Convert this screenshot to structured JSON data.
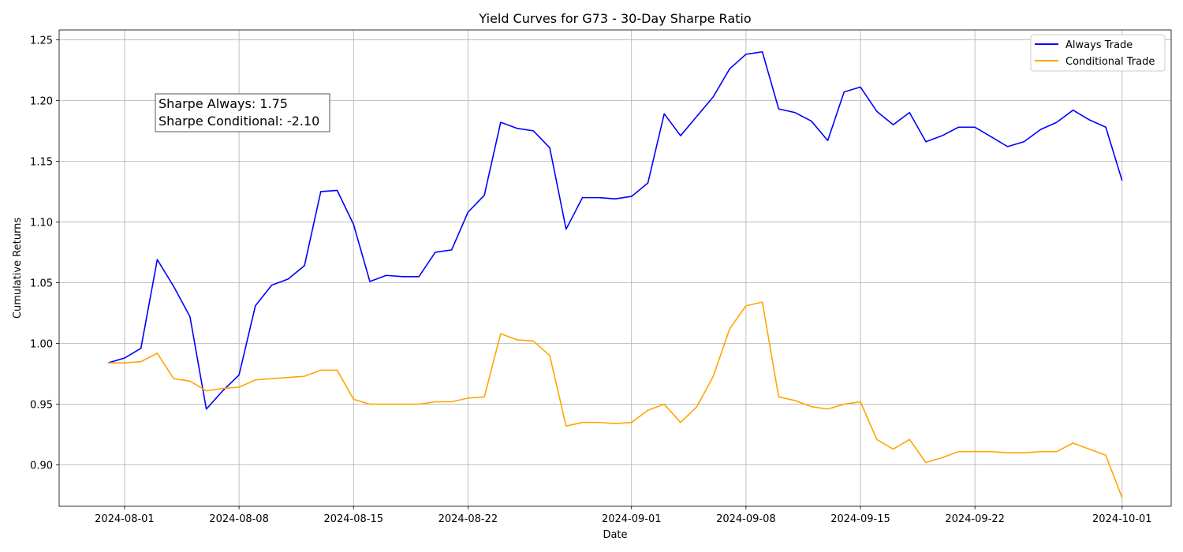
{
  "chart_data": {
    "type": "line",
    "title": "Yield Curves for G73 - 30-Day Sharpe Ratio",
    "xlabel": "Date",
    "ylabel": "Cumulative Returns",
    "xlim": [
      "2024-07-28",
      "2024-10-04"
    ],
    "ylim": [
      0.866,
      1.258
    ],
    "grid": true,
    "legend_position": "top-right",
    "x_ticks": [
      "2024-08-01",
      "2024-08-08",
      "2024-08-15",
      "2024-08-22",
      "2024-09-01",
      "2024-09-08",
      "2024-09-15",
      "2024-09-22",
      "2024-10-01"
    ],
    "y_ticks": [
      "0.90",
      "0.95",
      "1.00",
      "1.05",
      "1.10",
      "1.15",
      "1.20",
      "1.25"
    ],
    "annotation": [
      "Sharpe Always: 1.75",
      "Sharpe Conditional: -2.10"
    ],
    "x": [
      "2024-07-31",
      "2024-08-01",
      "2024-08-02",
      "2024-08-03",
      "2024-08-04",
      "2024-08-05",
      "2024-08-06",
      "2024-08-07",
      "2024-08-08",
      "2024-08-09",
      "2024-08-10",
      "2024-08-11",
      "2024-08-12",
      "2024-08-13",
      "2024-08-14",
      "2024-08-15",
      "2024-08-16",
      "2024-08-17",
      "2024-08-18",
      "2024-08-19",
      "2024-08-20",
      "2024-08-21",
      "2024-08-22",
      "2024-08-23",
      "2024-08-24",
      "2024-08-25",
      "2024-08-26",
      "2024-08-27",
      "2024-08-28",
      "2024-08-29",
      "2024-08-30",
      "2024-08-31",
      "2024-09-01",
      "2024-09-02",
      "2024-09-03",
      "2024-09-04",
      "2024-09-05",
      "2024-09-06",
      "2024-09-07",
      "2024-09-08",
      "2024-09-09",
      "2024-09-10",
      "2024-09-11",
      "2024-09-12",
      "2024-09-13",
      "2024-09-14",
      "2024-09-15",
      "2024-09-16",
      "2024-09-17",
      "2024-09-18",
      "2024-09-19",
      "2024-09-20",
      "2024-09-21",
      "2024-09-22",
      "2024-09-23",
      "2024-09-24",
      "2024-09-25",
      "2024-09-26",
      "2024-09-27",
      "2024-09-28",
      "2024-09-29",
      "2024-09-30",
      "2024-10-01"
    ],
    "series": [
      {
        "name": "Always Trade",
        "color": "#0000ff",
        "values": [
          0.984,
          0.988,
          0.996,
          1.069,
          1.047,
          1.022,
          0.946,
          0.961,
          0.974,
          1.031,
          1.048,
          1.053,
          1.064,
          1.125,
          1.126,
          1.098,
          1.051,
          1.056,
          1.055,
          1.055,
          1.075,
          1.077,
          1.108,
          1.122,
          1.182,
          1.177,
          1.175,
          1.161,
          1.094,
          1.12,
          1.12,
          1.119,
          1.121,
          1.132,
          1.189,
          1.171,
          1.187,
          1.203,
          1.226,
          1.238,
          1.24,
          1.193,
          1.19,
          1.183,
          1.167,
          1.207,
          1.211,
          1.191,
          1.18,
          1.19,
          1.166,
          1.171,
          1.178,
          1.178,
          1.17,
          1.162,
          1.166,
          1.176,
          1.182,
          1.192,
          1.184,
          1.178,
          1.134
        ]
      },
      {
        "name": "Conditional Trade",
        "color": "#ffa500",
        "values": [
          0.984,
          0.984,
          0.985,
          0.992,
          0.971,
          0.969,
          0.961,
          0.963,
          0.964,
          0.97,
          0.971,
          0.972,
          0.973,
          0.978,
          0.978,
          0.954,
          0.95,
          0.95,
          0.95,
          0.95,
          0.952,
          0.952,
          0.955,
          0.956,
          1.008,
          1.003,
          1.002,
          0.99,
          0.932,
          0.935,
          0.935,
          0.934,
          0.935,
          0.945,
          0.95,
          0.935,
          0.948,
          0.973,
          1.012,
          1.031,
          1.034,
          0.956,
          0.953,
          0.948,
          0.946,
          0.95,
          0.952,
          0.921,
          0.913,
          0.921,
          0.902,
          0.906,
          0.911,
          0.911,
          0.911,
          0.91,
          0.91,
          0.911,
          0.911,
          0.918,
          0.913,
          0.908,
          0.873
        ]
      }
    ]
  }
}
